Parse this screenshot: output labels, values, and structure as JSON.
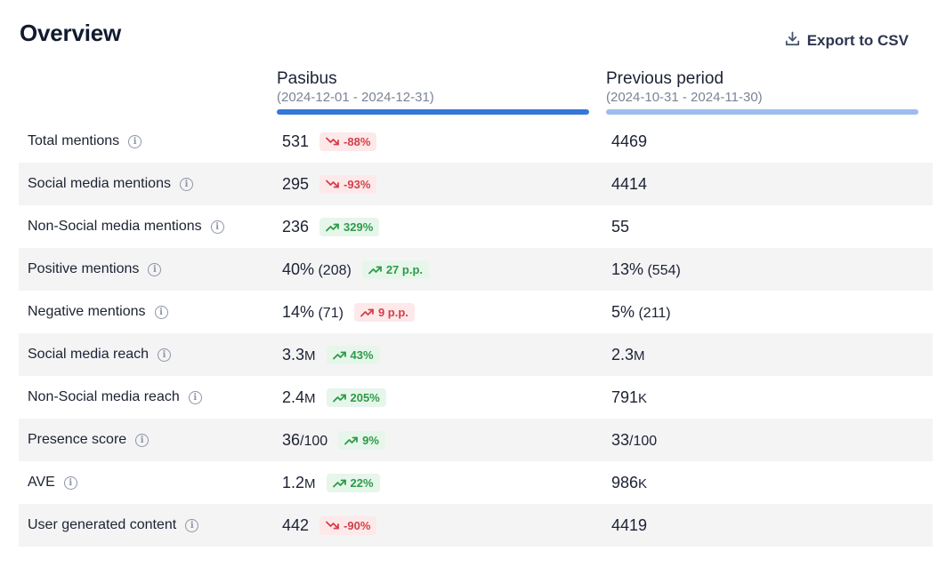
{
  "header": {
    "title": "Overview",
    "export_label": "Export to CSV"
  },
  "columns": {
    "current": {
      "name": "Pasibus",
      "range": "(2024-12-01 - 2024-12-31)"
    },
    "previous": {
      "name": "Previous period",
      "range": "(2024-10-31 - 2024-11-30)"
    }
  },
  "colors": {
    "current_bar": "#3578d8",
    "previous_bar": "#9dbdf0",
    "up": "#2e9a4a",
    "down": "#d2404a"
  },
  "rows": [
    {
      "label": "Total mentions",
      "cur": "531",
      "cur_sub": "",
      "change": "-88%",
      "dir": "down",
      "tone": "down",
      "prev": "4469",
      "prev_sub": ""
    },
    {
      "label": "Social media mentions",
      "cur": "295",
      "cur_sub": "",
      "change": "-93%",
      "dir": "down",
      "tone": "down",
      "prev": "4414",
      "prev_sub": ""
    },
    {
      "label": "Non-Social media mentions",
      "cur": "236",
      "cur_sub": "",
      "change": "329%",
      "dir": "up",
      "tone": "up",
      "prev": "55",
      "prev_sub": ""
    },
    {
      "label": "Positive mentions",
      "cur": "40%",
      "cur_sub": " (208)",
      "change": "27 p.p.",
      "dir": "up",
      "tone": "up",
      "prev": "13%",
      "prev_sub": " (554)"
    },
    {
      "label": "Negative mentions",
      "cur": "14%",
      "cur_sub": " (71)",
      "change": "9 p.p.",
      "dir": "up",
      "tone": "down",
      "prev": "5%",
      "prev_sub": " (211)"
    },
    {
      "label": "Social media reach",
      "cur": "3.3",
      "cur_sub": "M",
      "change": "43%",
      "dir": "up",
      "tone": "up",
      "prev": "2.3",
      "prev_sub": "M"
    },
    {
      "label": "Non-Social media reach",
      "cur": "2.4",
      "cur_sub": "M",
      "change": "205%",
      "dir": "up",
      "tone": "up",
      "prev": "791",
      "prev_sub": "K"
    },
    {
      "label": "Presence score",
      "cur": "36",
      "cur_sub": "/100",
      "change": "9%",
      "dir": "up",
      "tone": "up",
      "prev": "33",
      "prev_sub": "/100"
    },
    {
      "label": "AVE",
      "cur": "1.2",
      "cur_sub": "M",
      "change": "22%",
      "dir": "up",
      "tone": "up",
      "prev": "986",
      "prev_sub": "K"
    },
    {
      "label": "User generated content",
      "cur": "442",
      "cur_sub": "",
      "change": "-90%",
      "dir": "down",
      "tone": "down",
      "prev": "4419",
      "prev_sub": ""
    }
  ]
}
